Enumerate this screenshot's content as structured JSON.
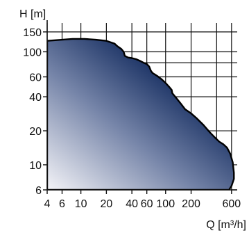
{
  "chart_data": {
    "type": "area",
    "title": "",
    "xlabel": "Q [m³/h]",
    "ylabel": "H [m]",
    "x_scale": "log",
    "y_scale": "log",
    "xlim": [
      4,
      700
    ],
    "ylim": [
      6,
      180
    ],
    "grid": true,
    "x_tick_labels": [
      "4",
      "6",
      "10",
      "20",
      "40",
      "60",
      "100",
      "200",
      "600"
    ],
    "x_tick_values": [
      4,
      6,
      10,
      20,
      40,
      60,
      100,
      200,
      600
    ],
    "y_tick_labels": [
      "6",
      "10",
      "20",
      "40",
      "60",
      "100",
      "150"
    ],
    "y_tick_values": [
      6,
      10,
      20,
      40,
      60,
      100,
      150
    ],
    "x_grid": [
      4,
      6,
      10,
      20,
      40,
      60,
      100,
      200,
      400,
      600
    ],
    "y_grid": [
      6,
      10,
      20,
      40,
      60,
      80,
      100,
      150
    ],
    "envelope": {
      "x": [
        4,
        8,
        11,
        15,
        20,
        25,
        27,
        30,
        32,
        33,
        36,
        40,
        45,
        50,
        55,
        60,
        64,
        67,
        70,
        80,
        90,
        100,
        110,
        118,
        120,
        130,
        150,
        170,
        200,
        230,
        280,
        330,
        380,
        430,
        480,
        530,
        580,
        620,
        640,
        640,
        600,
        560,
        4
      ],
      "y": [
        125,
        130,
        130,
        128,
        125,
        118,
        112,
        106,
        100,
        92,
        89,
        88,
        86,
        83,
        80,
        78,
        74,
        68,
        65,
        61,
        57,
        53,
        49,
        46,
        43,
        40,
        35,
        31,
        28.5,
        26,
        22.5,
        19.5,
        17.5,
        16,
        15.2,
        14.2,
        12.5,
        10.5,
        8.5,
        7.5,
        6.5,
        6,
        6
      ]
    },
    "fill_colors": [
      "#f4f4f8",
      "#7584a8",
      "#152d60",
      "#0b1d45"
    ],
    "outline_color": "#000000"
  }
}
